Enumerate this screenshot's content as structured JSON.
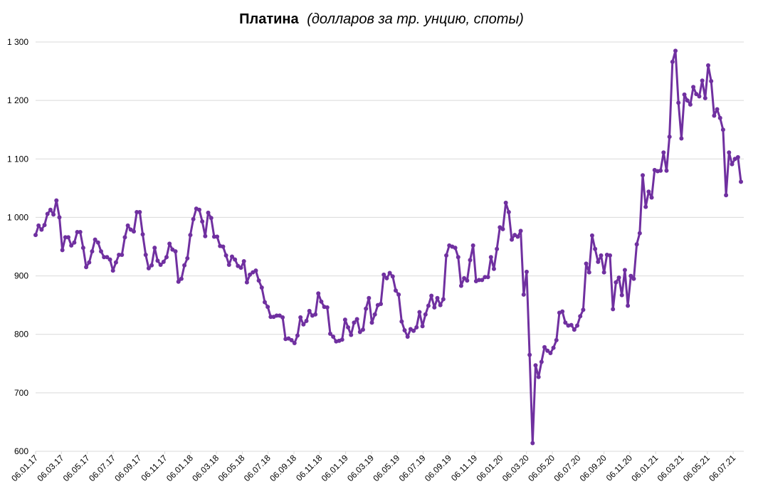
{
  "chart_data": {
    "type": "line",
    "title": "Платина",
    "subtitle": "(долларов за тр. унцию, споты)",
    "color": "#7030a0",
    "grid": true,
    "ylim": [
      600,
      1300
    ],
    "yticks": [
      600,
      700,
      800,
      900,
      {
        "value": 1000,
        "label": "1 000"
      },
      {
        "value": 1100,
        "label": "1 100"
      },
      {
        "value": 1200,
        "label": "1 200"
      },
      {
        "value": 1300,
        "label": "1 300"
      }
    ],
    "x_labels": [
      "06.01.17",
      "06.03.17",
      "06.05.17",
      "06.07.17",
      "06.09.17",
      "06.11.17",
      "06.01.18",
      "06.03.18",
      "06.05.18",
      "06.07.18",
      "06.09.18",
      "06.11.18",
      "06.01.19",
      "06.03.19",
      "06.05.19",
      "06.07.19",
      "06.09.19",
      "06.11.19",
      "06.01.20",
      "06.03.20",
      "06.05.20",
      "06.07.20",
      "06.09.20",
      "06.11.20",
      "06.01.21",
      "06.03.21",
      "06.05.21",
      "06.07.21"
    ],
    "values": [
      970,
      986,
      979,
      987,
      1006,
      1013,
      1005,
      1029,
      1000,
      944,
      966,
      966,
      952,
      957,
      975,
      975,
      948,
      915,
      923,
      942,
      962,
      957,
      942,
      932,
      932,
      928,
      909,
      923,
      936,
      936,
      966,
      986,
      979,
      976,
      1009,
      1009,
      971,
      936,
      913,
      918,
      948,
      926,
      919,
      924,
      932,
      955,
      945,
      942,
      890,
      895,
      918,
      930,
      970,
      997,
      1015,
      1013,
      993,
      968,
      1008,
      999,
      967,
      967,
      951,
      950,
      935,
      919,
      933,
      928,
      917,
      914,
      925,
      889,
      902,
      906,
      909,
      892,
      880,
      855,
      847,
      830,
      830,
      832,
      832,
      829,
      792,
      793,
      790,
      785,
      798,
      829,
      817,
      823,
      840,
      832,
      834,
      870,
      856,
      847,
      846,
      801,
      796,
      788,
      789,
      791,
      825,
      812,
      799,
      820,
      826,
      804,
      808,
      844,
      862,
      820,
      834,
      850,
      852,
      902,
      896,
      905,
      899,
      875,
      868,
      822,
      807,
      796,
      809,
      806,
      812,
      838,
      814,
      834,
      849,
      866,
      846,
      862,
      850,
      860,
      935,
      952,
      950,
      948,
      932,
      883,
      896,
      892,
      927,
      952,
      891,
      893,
      893,
      898,
      898,
      932,
      912,
      946,
      983,
      980,
      1025,
      1009,
      962,
      970,
      967,
      977,
      868,
      907,
      765,
      614,
      747,
      727,
      753,
      778,
      772,
      768,
      777,
      790,
      837,
      839,
      820,
      815,
      816,
      808,
      815,
      831,
      842,
      921,
      906,
      969,
      946,
      924,
      935,
      906,
      936,
      935,
      843,
      889,
      897,
      867,
      910,
      849,
      900,
      895,
      954,
      973,
      1072,
      1018,
      1044,
      1034,
      1081,
      1079,
      1080,
      1111,
      1080,
      1138,
      1266,
      1285,
      1196,
      1135,
      1210,
      1200,
      1193,
      1223,
      1211,
      1207,
      1234,
      1204,
      1260,
      1233,
      1174,
      1185,
      1170,
      1150,
      1038,
      1111,
      1091,
      1100,
      1103,
      1061
    ]
  }
}
